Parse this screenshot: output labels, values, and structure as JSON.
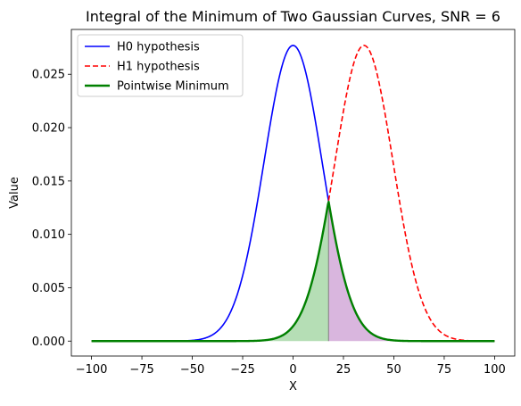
{
  "chart_data": {
    "type": "line",
    "title": "Integral of the Minimum of Two Gaussian Curves, SNR = 6",
    "xlabel": "X",
    "ylabel": "Value",
    "xlim": [
      -110,
      110
    ],
    "ylim": [
      -0.0014,
      0.0292
    ],
    "xticks": [
      -100,
      -75,
      -50,
      -25,
      0,
      25,
      50,
      75,
      100
    ],
    "xtick_labels": [
      "−100",
      "−75",
      "−50",
      "−25",
      "0",
      "25",
      "50",
      "75",
      "100"
    ],
    "yticks": [
      0.0,
      0.005,
      0.01,
      0.015,
      0.02,
      0.025
    ],
    "ytick_labels": [
      "0.000",
      "0.005",
      "0.010",
      "0.015",
      "0.020",
      "0.025"
    ],
    "x_range": [
      -100,
      100
    ],
    "grid": false,
    "legend_position": "upper-left",
    "series": [
      {
        "name": "H0 hypothesis",
        "kind": "gaussian",
        "mean": 0,
        "std": 14.4,
        "peak": 0.0277,
        "color": "#0000ff",
        "dash": "solid"
      },
      {
        "name": "H1 hypothesis",
        "kind": "gaussian",
        "mean": 35.2,
        "std": 14.4,
        "peak": 0.0277,
        "color": "#ff0000",
        "dash": "dashed"
      },
      {
        "name": "Pointwise Minimum",
        "kind": "minimum",
        "of": [
          "H0 hypothesis",
          "H1 hypothesis"
        ],
        "color": "#008000",
        "dash": "solid"
      }
    ],
    "shaded_regions": [
      {
        "name": "integral-left",
        "x_from": -100,
        "x_to": 17.6,
        "color": "#2ca02c",
        "opacity": 0.35
      },
      {
        "name": "integral-right",
        "x_from": 17.6,
        "x_to": 100,
        "color": "#9b3fa8",
        "opacity": 0.38
      }
    ],
    "crossover_x": 17.6
  }
}
